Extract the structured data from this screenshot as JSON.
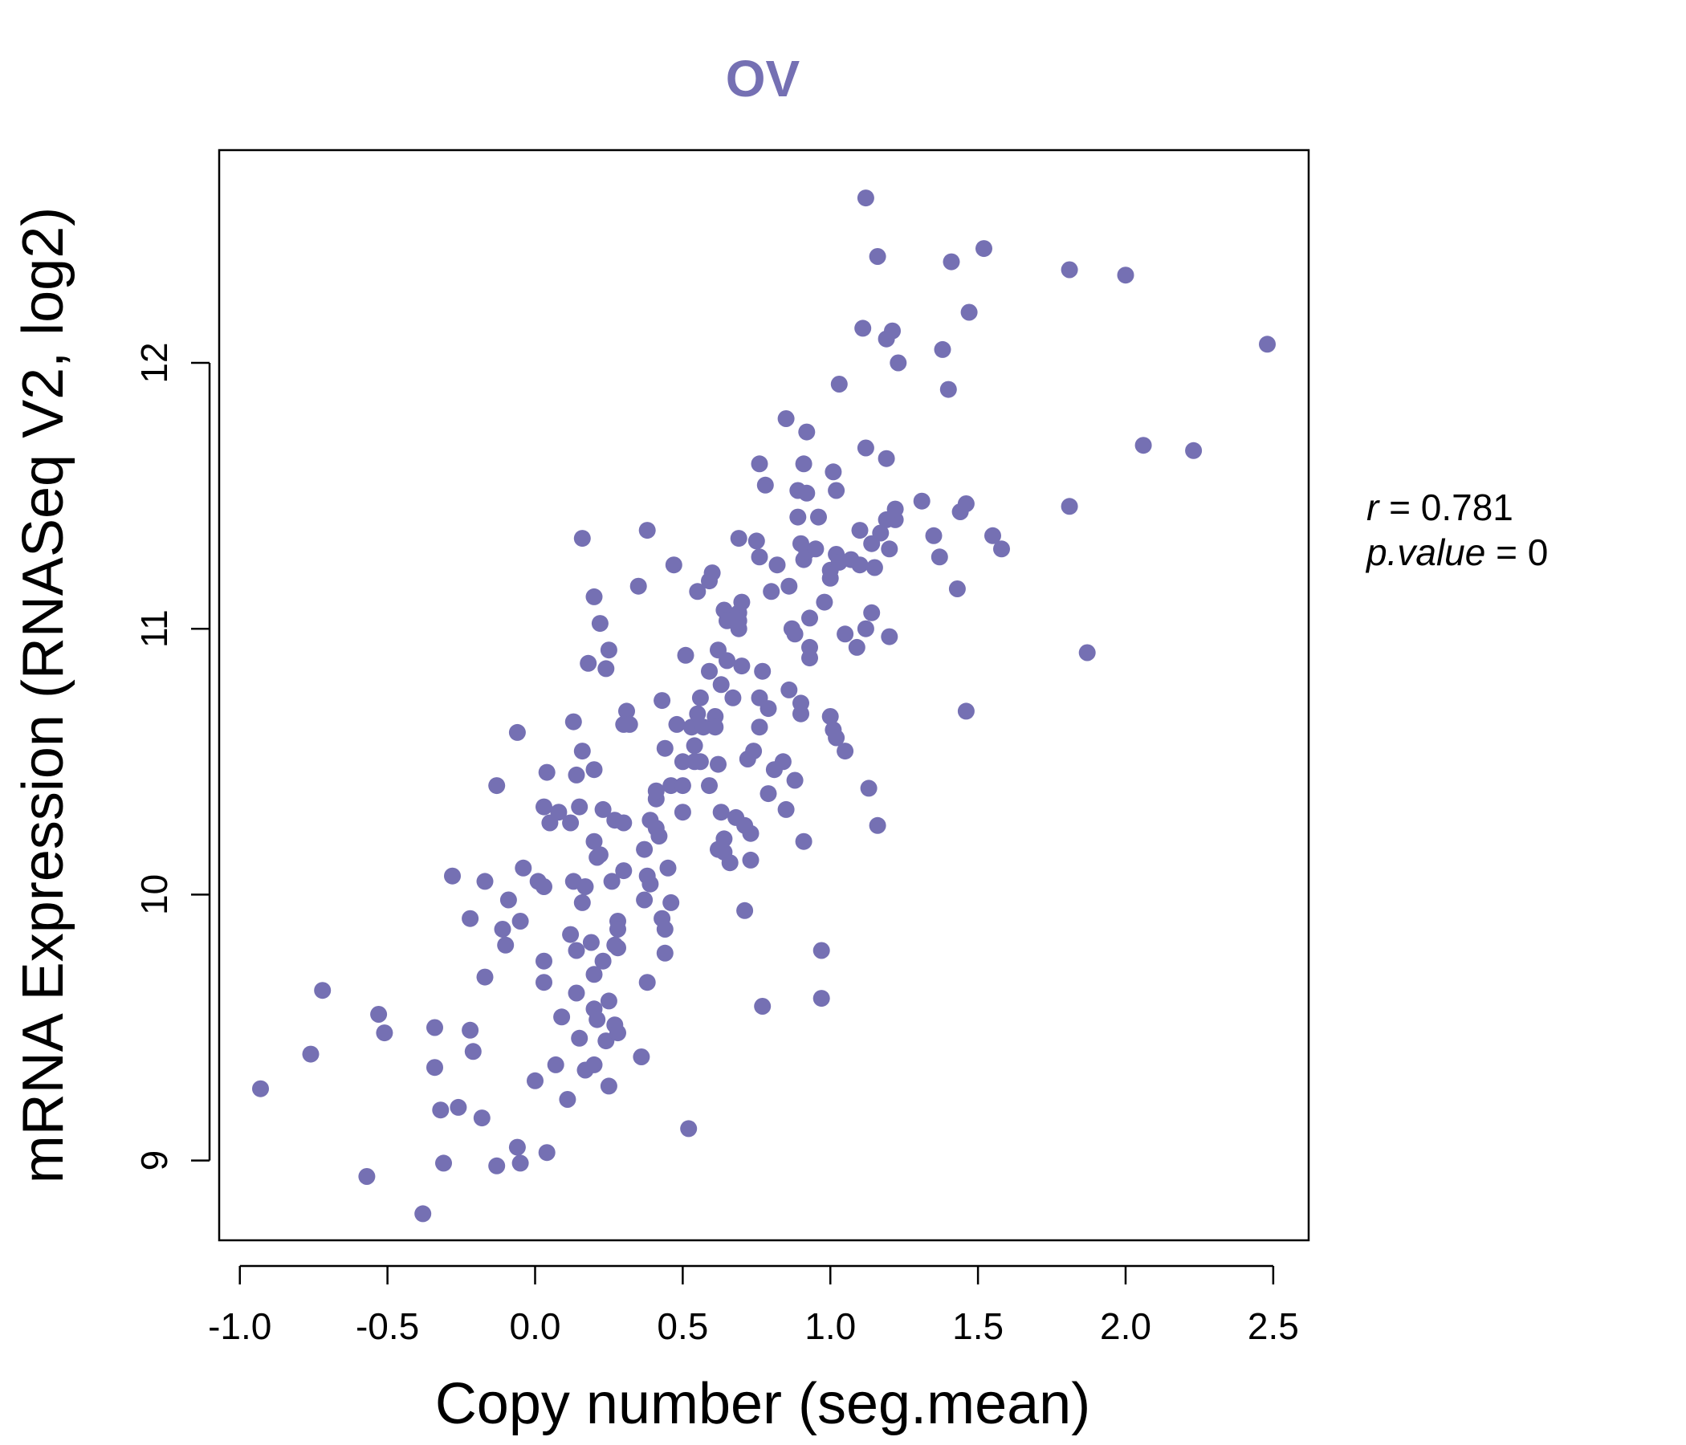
{
  "chart_data": {
    "type": "scatter",
    "title": "OV",
    "xlabel": "Copy number (seg.mean)",
    "ylabel": "mRNA Expression (RNASeq V2, log2)",
    "xlim": [
      -1.07,
      2.62
    ],
    "ylim": [
      8.7,
      12.8
    ],
    "x_ticks": [
      -1.0,
      -0.5,
      0.0,
      0.5,
      1.0,
      1.5,
      2.0,
      2.5
    ],
    "x_tick_labels": [
      "-1.0",
      "-0.5",
      "0.0",
      "0.5",
      "1.0",
      "1.5",
      "2.0",
      "2.5"
    ],
    "y_ticks": [
      9,
      10,
      11,
      12
    ],
    "y_tick_labels": [
      "9",
      "10",
      "11",
      "12"
    ],
    "stats": {
      "r_label": "r",
      "r_value": "0.781",
      "p_label": "p.value",
      "p_value": "0"
    },
    "colors": {
      "points": "#7570b3",
      "title": "#7570b3",
      "axis": "#000000"
    },
    "grid": false,
    "series": [
      {
        "name": "samples",
        "points": [
          [
            -0.93,
            9.27
          ],
          [
            -0.76,
            9.4
          ],
          [
            -0.72,
            9.64
          ],
          [
            -0.57,
            8.94
          ],
          [
            -0.53,
            9.55
          ],
          [
            -0.51,
            9.48
          ],
          [
            -0.38,
            8.8
          ],
          [
            -0.34,
            9.5
          ],
          [
            -0.34,
            9.35
          ],
          [
            -0.32,
            9.19
          ],
          [
            -0.31,
            8.99
          ],
          [
            -0.28,
            10.07
          ],
          [
            -0.26,
            9.2
          ],
          [
            -0.22,
            9.49
          ],
          [
            -0.22,
            9.91
          ],
          [
            -0.21,
            9.41
          ],
          [
            -0.18,
            9.16
          ],
          [
            -0.17,
            10.05
          ],
          [
            -0.17,
            9.69
          ],
          [
            -0.13,
            10.41
          ],
          [
            -0.13,
            8.98
          ],
          [
            -0.11,
            9.87
          ],
          [
            -0.1,
            9.81
          ],
          [
            -0.09,
            9.98
          ],
          [
            -0.06,
            9.05
          ],
          [
            -0.06,
            10.61
          ],
          [
            -0.05,
            8.99
          ],
          [
            -0.05,
            9.9
          ],
          [
            -0.04,
            10.1
          ],
          [
            0.0,
            9.3
          ],
          [
            0.01,
            10.05
          ],
          [
            0.03,
            10.03
          ],
          [
            0.03,
            10.33
          ],
          [
            0.03,
            9.67
          ],
          [
            0.03,
            9.75
          ],
          [
            0.04,
            10.46
          ],
          [
            0.04,
            9.03
          ],
          [
            0.05,
            10.27
          ],
          [
            0.07,
            9.36
          ],
          [
            0.08,
            10.31
          ],
          [
            0.09,
            9.54
          ],
          [
            0.11,
            9.23
          ],
          [
            0.12,
            10.27
          ],
          [
            0.12,
            9.85
          ],
          [
            0.13,
            10.05
          ],
          [
            0.13,
            10.65
          ],
          [
            0.14,
            10.45
          ],
          [
            0.14,
            9.79
          ],
          [
            0.14,
            9.63
          ],
          [
            0.15,
            10.33
          ],
          [
            0.15,
            9.46
          ],
          [
            0.16,
            10.54
          ],
          [
            0.16,
            11.34
          ],
          [
            0.16,
            9.97
          ],
          [
            0.17,
            10.03
          ],
          [
            0.17,
            9.34
          ],
          [
            0.18,
            10.87
          ],
          [
            0.19,
            9.82
          ],
          [
            0.2,
            10.47
          ],
          [
            0.2,
            10.2
          ],
          [
            0.2,
            9.7
          ],
          [
            0.2,
            9.57
          ],
          [
            0.2,
            9.36
          ],
          [
            0.2,
            11.12
          ],
          [
            0.21,
            10.14
          ],
          [
            0.21,
            9.53
          ],
          [
            0.22,
            11.02
          ],
          [
            0.22,
            10.15
          ],
          [
            0.23,
            10.32
          ],
          [
            0.23,
            9.75
          ],
          [
            0.24,
            9.45
          ],
          [
            0.24,
            10.85
          ],
          [
            0.25,
            10.92
          ],
          [
            0.25,
            9.6
          ],
          [
            0.25,
            9.28
          ],
          [
            0.26,
            10.05
          ],
          [
            0.27,
            9.81
          ],
          [
            0.27,
            9.51
          ],
          [
            0.27,
            10.28
          ],
          [
            0.28,
            9.48
          ],
          [
            0.28,
            9.9
          ],
          [
            0.28,
            9.87
          ],
          [
            0.28,
            9.8
          ],
          [
            0.3,
            10.27
          ],
          [
            0.3,
            10.09
          ],
          [
            0.3,
            10.64
          ],
          [
            0.31,
            10.69
          ],
          [
            0.32,
            10.64
          ],
          [
            0.35,
            11.16
          ],
          [
            0.36,
            9.39
          ],
          [
            0.37,
            10.17
          ],
          [
            0.37,
            9.98
          ],
          [
            0.38,
            11.37
          ],
          [
            0.38,
            9.67
          ],
          [
            0.38,
            10.07
          ],
          [
            0.39,
            10.04
          ],
          [
            0.39,
            10.28
          ],
          [
            0.41,
            10.25
          ],
          [
            0.41,
            10.36
          ],
          [
            0.41,
            10.39
          ],
          [
            0.42,
            10.22
          ],
          [
            0.43,
            10.73
          ],
          [
            0.43,
            9.91
          ],
          [
            0.44,
            10.55
          ],
          [
            0.44,
            9.78
          ],
          [
            0.44,
            9.87
          ],
          [
            0.45,
            10.1
          ],
          [
            0.46,
            9.97
          ],
          [
            0.46,
            10.41
          ],
          [
            0.47,
            11.24
          ],
          [
            0.48,
            10.64
          ],
          [
            0.5,
            10.5
          ],
          [
            0.5,
            10.41
          ],
          [
            0.5,
            10.31
          ],
          [
            0.51,
            10.9
          ],
          [
            0.52,
            9.12
          ],
          [
            0.53,
            10.63
          ],
          [
            0.54,
            10.56
          ],
          [
            0.54,
            10.5
          ],
          [
            0.55,
            10.68
          ],
          [
            0.55,
            11.14
          ],
          [
            0.56,
            10.74
          ],
          [
            0.56,
            10.5
          ],
          [
            0.57,
            10.63
          ],
          [
            0.59,
            10.84
          ],
          [
            0.59,
            10.41
          ],
          [
            0.59,
            11.18
          ],
          [
            0.6,
            11.21
          ],
          [
            0.61,
            10.67
          ],
          [
            0.61,
            10.63
          ],
          [
            0.62,
            10.17
          ],
          [
            0.62,
            10.49
          ],
          [
            0.62,
            10.92
          ],
          [
            0.63,
            10.79
          ],
          [
            0.63,
            10.31
          ],
          [
            0.64,
            11.07
          ],
          [
            0.64,
            10.16
          ],
          [
            0.64,
            10.21
          ],
          [
            0.65,
            11.03
          ],
          [
            0.65,
            10.88
          ],
          [
            0.66,
            10.12
          ],
          [
            0.67,
            10.74
          ],
          [
            0.68,
            10.29
          ],
          [
            0.69,
            11.34
          ],
          [
            0.69,
            11.06
          ],
          [
            0.69,
            11.03
          ],
          [
            0.69,
            11.0
          ],
          [
            0.7,
            11.1
          ],
          [
            0.7,
            10.86
          ],
          [
            0.71,
            10.26
          ],
          [
            0.71,
            9.94
          ],
          [
            0.72,
            10.51
          ],
          [
            0.73,
            10.13
          ],
          [
            0.73,
            10.23
          ],
          [
            0.74,
            10.54
          ],
          [
            0.75,
            11.33
          ],
          [
            0.76,
            11.27
          ],
          [
            0.76,
            11.62
          ],
          [
            0.76,
            10.74
          ],
          [
            0.76,
            10.63
          ],
          [
            0.77,
            9.58
          ],
          [
            0.77,
            10.84
          ],
          [
            0.78,
            11.54
          ],
          [
            0.79,
            10.38
          ],
          [
            0.79,
            10.7
          ],
          [
            0.8,
            11.14
          ],
          [
            0.81,
            10.47
          ],
          [
            0.82,
            11.24
          ],
          [
            0.84,
            10.5
          ],
          [
            0.85,
            11.79
          ],
          [
            0.85,
            10.32
          ],
          [
            0.86,
            11.16
          ],
          [
            0.86,
            10.77
          ],
          [
            0.87,
            11.0
          ],
          [
            0.88,
            10.43
          ],
          [
            0.88,
            10.98
          ],
          [
            0.89,
            11.52
          ],
          [
            0.89,
            11.42
          ],
          [
            0.9,
            11.32
          ],
          [
            0.9,
            10.68
          ],
          [
            0.9,
            10.72
          ],
          [
            0.91,
            11.62
          ],
          [
            0.91,
            11.26
          ],
          [
            0.91,
            10.2
          ],
          [
            0.92,
            11.74
          ],
          [
            0.92,
            11.51
          ],
          [
            0.92,
            11.29
          ],
          [
            0.93,
            10.93
          ],
          [
            0.93,
            10.89
          ],
          [
            0.93,
            11.04
          ],
          [
            0.95,
            11.3
          ],
          [
            0.96,
            11.42
          ],
          [
            0.97,
            9.61
          ],
          [
            0.97,
            9.79
          ],
          [
            0.98,
            11.1
          ],
          [
            1.0,
            11.19
          ],
          [
            1.0,
            10.67
          ],
          [
            1.0,
            11.22
          ],
          [
            1.01,
            11.59
          ],
          [
            1.01,
            10.62
          ],
          [
            1.02,
            10.59
          ],
          [
            1.02,
            11.52
          ],
          [
            1.02,
            11.28
          ],
          [
            1.03,
            11.92
          ],
          [
            1.03,
            11.25
          ],
          [
            1.05,
            10.54
          ],
          [
            1.05,
            10.98
          ],
          [
            1.07,
            11.26
          ],
          [
            1.09,
            10.93
          ],
          [
            1.1,
            11.37
          ],
          [
            1.1,
            11.24
          ],
          [
            1.11,
            12.13
          ],
          [
            1.12,
            12.62
          ],
          [
            1.12,
            11.68
          ],
          [
            1.12,
            11.0
          ],
          [
            1.13,
            10.4
          ],
          [
            1.14,
            11.06
          ],
          [
            1.14,
            11.32
          ],
          [
            1.15,
            11.23
          ],
          [
            1.16,
            10.26
          ],
          [
            1.16,
            12.4
          ],
          [
            1.17,
            11.36
          ],
          [
            1.19,
            11.41
          ],
          [
            1.19,
            12.09
          ],
          [
            1.19,
            11.64
          ],
          [
            1.2,
            11.3
          ],
          [
            1.2,
            10.97
          ],
          [
            1.21,
            12.12
          ],
          [
            1.22,
            11.41
          ],
          [
            1.22,
            11.45
          ],
          [
            1.23,
            12.0
          ],
          [
            1.31,
            11.48
          ],
          [
            1.35,
            11.35
          ],
          [
            1.37,
            11.27
          ],
          [
            1.38,
            12.05
          ],
          [
            1.4,
            11.9
          ],
          [
            1.41,
            12.38
          ],
          [
            1.43,
            11.15
          ],
          [
            1.44,
            11.44
          ],
          [
            1.46,
            11.47
          ],
          [
            1.46,
            10.69
          ],
          [
            1.47,
            12.19
          ],
          [
            1.52,
            12.43
          ],
          [
            1.55,
            11.35
          ],
          [
            1.58,
            11.3
          ],
          [
            1.81,
            11.46
          ],
          [
            1.81,
            12.35
          ],
          [
            1.87,
            10.91
          ],
          [
            2.0,
            12.33
          ],
          [
            2.06,
            11.69
          ],
          [
            2.23,
            11.67
          ],
          [
            2.48,
            12.07
          ]
        ]
      }
    ]
  }
}
